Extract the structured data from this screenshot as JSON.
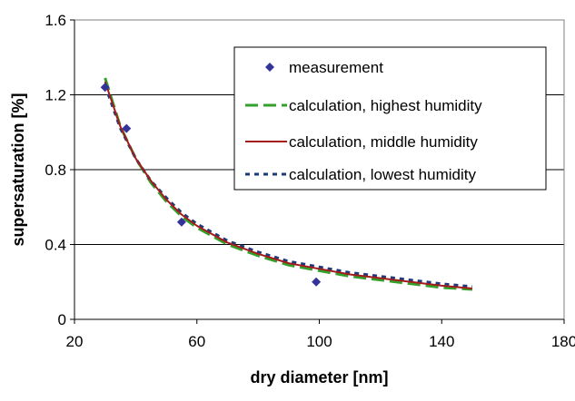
{
  "chart_data": {
    "type": "line",
    "title": "",
    "xlabel": "dry diameter [nm]",
    "ylabel": "supersaturation [%]",
    "xlim": [
      20,
      180
    ],
    "ylim": [
      0,
      1.6
    ],
    "x_ticks": [
      "20",
      "60",
      "100",
      "140",
      "180"
    ],
    "y_ticks": [
      "0",
      "0.4",
      "0.8",
      "1.2",
      "1.6"
    ],
    "grid": "horizontal",
    "legend_position": "top-right",
    "colors": {
      "measurement": "#333399",
      "highest": "#33a02c",
      "middle": "#a51c1c",
      "lowest": "#1f3a7a",
      "grid": "#000000"
    },
    "series": [
      {
        "name": "measurement",
        "style": "markers-diamond",
        "x": [
          30,
          37,
          55,
          99
        ],
        "y": [
          1.24,
          1.02,
          0.52,
          0.2
        ]
      },
      {
        "name": "calculation, highest humidity",
        "style": "dashed",
        "x": [
          30,
          35,
          40,
          45,
          50,
          55,
          60,
          70,
          80,
          90,
          100,
          110,
          120,
          130,
          140,
          150
        ],
        "y": [
          1.29,
          1.03,
          0.86,
          0.73,
          0.63,
          0.55,
          0.49,
          0.4,
          0.34,
          0.29,
          0.26,
          0.23,
          0.21,
          0.19,
          0.17,
          0.16
        ]
      },
      {
        "name": "calculation, middle humidity",
        "style": "solid",
        "x": [
          30,
          35,
          40,
          45,
          50,
          55,
          60,
          70,
          80,
          90,
          100,
          110,
          120,
          130,
          140,
          150
        ],
        "y": [
          1.27,
          1.03,
          0.86,
          0.74,
          0.64,
          0.56,
          0.5,
          0.41,
          0.35,
          0.3,
          0.27,
          0.24,
          0.22,
          0.2,
          0.18,
          0.165
        ]
      },
      {
        "name": "calculation, lowest humidity",
        "style": "dotted",
        "x": [
          30,
          35,
          40,
          45,
          50,
          55,
          60,
          70,
          80,
          90,
          100,
          110,
          120,
          130,
          140,
          150
        ],
        "y": [
          1.25,
          1.02,
          0.86,
          0.74,
          0.65,
          0.57,
          0.51,
          0.42,
          0.36,
          0.31,
          0.28,
          0.25,
          0.23,
          0.21,
          0.19,
          0.175
        ]
      }
    ]
  }
}
